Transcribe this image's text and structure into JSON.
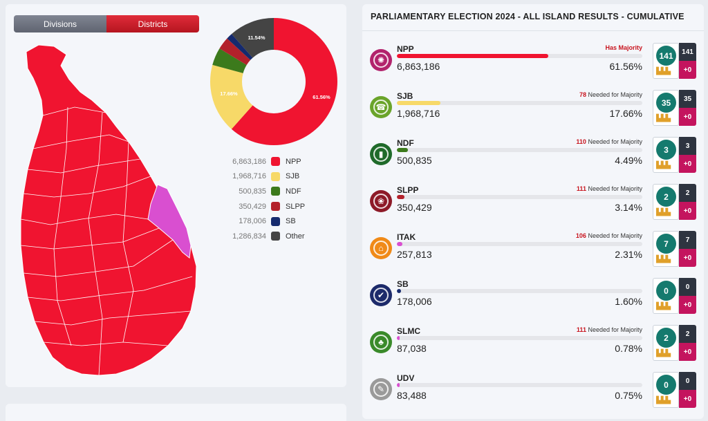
{
  "toggle": {
    "divisions": "Divisions",
    "districts": "Districts",
    "active": "districts"
  },
  "donut": {
    "label_npp": "61.56%",
    "label_sjb": "17.66%",
    "label_other": "11.54%",
    "slices": [
      {
        "name": "NPP",
        "pct": 61.56,
        "color": "#f01430"
      },
      {
        "name": "SJB",
        "pct": 17.66,
        "color": "#f7d968"
      },
      {
        "name": "NDF",
        "pct": 4.49,
        "color": "#3c7a1c"
      },
      {
        "name": "SLPP",
        "pct": 3.14,
        "color": "#b3212b"
      },
      {
        "name": "SB",
        "pct": 1.6,
        "color": "#152a6e"
      },
      {
        "name": "Other",
        "pct": 11.54,
        "color": "#444444"
      }
    ]
  },
  "legend": [
    {
      "value": "6,863,186",
      "name": "NPP",
      "color": "#f01430"
    },
    {
      "value": "1,968,716",
      "name": "SJB",
      "color": "#f7d968"
    },
    {
      "value": "500,835",
      "name": "NDF",
      "color": "#3c7a1c"
    },
    {
      "value": "350,429",
      "name": "SLPP",
      "color": "#b3212b"
    },
    {
      "value": "178,006",
      "name": "SB",
      "color": "#152a6e"
    },
    {
      "value": "1,286,834",
      "name": "Other",
      "color": "#444444"
    }
  ],
  "map": {
    "primary_color": "#f01430",
    "secondary_color": "#d94fd0"
  },
  "results": {
    "title": "PARLIAMENTARY ELECTION 2024 - ALL ISLAND RESULTS - CUMULATIVE",
    "parties": [
      {
        "name": "NPP",
        "votes": "6,863,186",
        "pct": "61.56%",
        "share": 0.6156,
        "color": "#f01430",
        "logo_color": "#b2236c",
        "logo_icon": "compass-icon",
        "logo_glyph": "✺",
        "status": "Has Majority",
        "need_num": "",
        "need_text": "",
        "seats": "141",
        "seats_total": "141",
        "change": "+0"
      },
      {
        "name": "SJB",
        "votes": "1,968,716",
        "pct": "17.66%",
        "share": 0.1766,
        "color": "#f7d968",
        "logo_color": "#6aa42a",
        "logo_icon": "telephone-icon",
        "logo_glyph": "☎",
        "status": "",
        "need_num": "78",
        "need_text": " Needed for Majority",
        "seats": "35",
        "seats_total": "35",
        "change": "+0"
      },
      {
        "name": "NDF",
        "votes": "500,835",
        "pct": "4.49%",
        "share": 0.0449,
        "color": "#3c7a1c",
        "logo_color": "#1f6a2a",
        "logo_icon": "gas-cylinder-icon",
        "logo_glyph": "▮",
        "status": "",
        "need_num": "110",
        "need_text": " Needed for Majority",
        "seats": "3",
        "seats_total": "3",
        "change": "+0"
      },
      {
        "name": "SLPP",
        "votes": "350,429",
        "pct": "3.14%",
        "share": 0.0314,
        "color": "#b3212b",
        "logo_color": "#8d1a28",
        "logo_icon": "flower-bud-icon",
        "logo_glyph": "❀",
        "status": "",
        "need_num": "111",
        "need_text": " Needed for Majority",
        "seats": "2",
        "seats_total": "2",
        "change": "+0"
      },
      {
        "name": "ITAK",
        "votes": "257,813",
        "pct": "2.31%",
        "share": 0.0231,
        "color": "#d94fd0",
        "logo_color": "#f08a18",
        "logo_icon": "house-icon",
        "logo_glyph": "⌂",
        "status": "",
        "need_num": "106",
        "need_text": " Needed for Majority",
        "seats": "7",
        "seats_total": "7",
        "change": "+0"
      },
      {
        "name": "SB",
        "votes": "178,006",
        "pct": "1.60%",
        "share": 0.016,
        "color": "#152a6e",
        "logo_color": "#1c2a6a",
        "logo_icon": "medal-icon",
        "logo_glyph": "✔",
        "status": "",
        "need_num": "",
        "need_text": "",
        "seats": "0",
        "seats_total": "0",
        "change": "+0"
      },
      {
        "name": "SLMC",
        "votes": "87,038",
        "pct": "0.78%",
        "share": 0.0078,
        "color": "#d94fd0",
        "logo_color": "#3a8a2a",
        "logo_icon": "tree-icon",
        "logo_glyph": "♣",
        "status": "",
        "need_num": "111",
        "need_text": " Needed for Majority",
        "seats": "2",
        "seats_total": "2",
        "change": "+0"
      },
      {
        "name": "UDV",
        "votes": "83,488",
        "pct": "0.75%",
        "share": 0.0075,
        "color": "#d94fd0",
        "logo_color": "#9a9a9a",
        "logo_icon": "microphone-icon",
        "logo_glyph": "✎",
        "status": "",
        "need_num": "",
        "need_text": "",
        "seats": "0",
        "seats_total": "0",
        "change": "+0"
      }
    ]
  }
}
